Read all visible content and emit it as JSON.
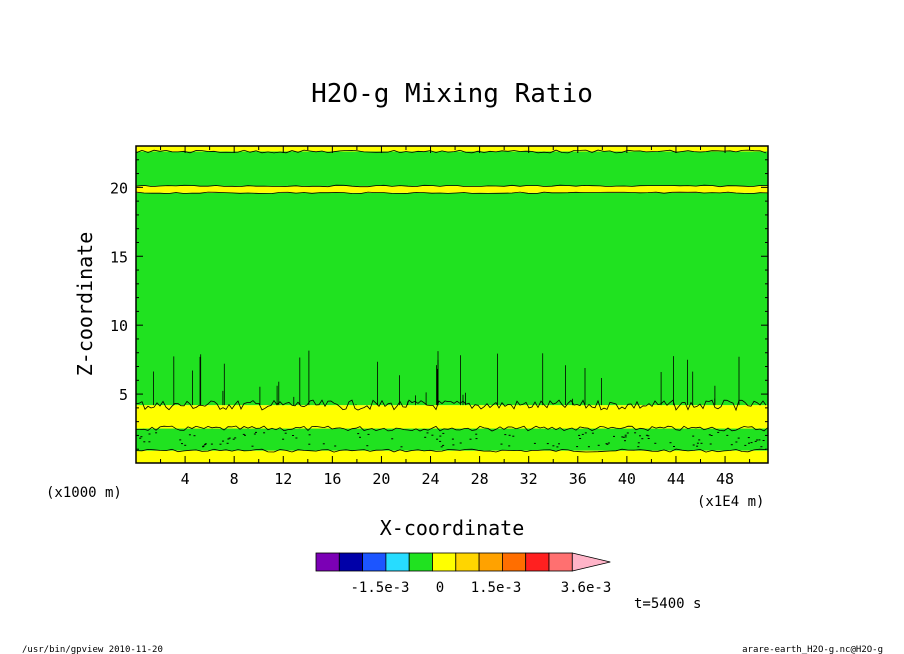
{
  "chart_data": {
    "type": "heatmap",
    "title": "H2O-g Mixing Ratio",
    "xlabel": "X-coordinate",
    "ylabel": "Z-coordinate",
    "x_unit_left": "(x1000 m)",
    "x_unit_right": "(x1E4 m)",
    "xlim": [
      0,
      51.5
    ],
    "ylim": [
      0,
      23
    ],
    "xticks": [
      4,
      8,
      12,
      16,
      20,
      24,
      28,
      32,
      36,
      40,
      44,
      48
    ],
    "yticks": [
      5,
      10,
      15,
      20
    ],
    "colorbar": {
      "colors": [
        "#7b00b5",
        "#0000a8",
        "#1c55ff",
        "#27dcff",
        "#20e220",
        "#ffff00",
        "#ffd500",
        "#ffa200",
        "#ff6e00",
        "#ff2020",
        "#ff7070",
        "#ffb4c8"
      ],
      "tick_labels": [
        "-1.5e-3",
        "0",
        "1.5e-3",
        "3.6e-3"
      ]
    },
    "layers": [
      {
        "z_from": 0.0,
        "z_to": 0.9,
        "level": "yellow"
      },
      {
        "z_from": 0.9,
        "z_to": 2.5,
        "level": "green"
      },
      {
        "z_from": 2.5,
        "z_to": 4.2,
        "level": "yellow"
      },
      {
        "z_from": 4.2,
        "z_to": 19.6,
        "level": "green"
      },
      {
        "z_from": 19.6,
        "z_to": 20.1,
        "level": "yellow"
      },
      {
        "z_from": 20.1,
        "z_to": 22.6,
        "level": "green"
      },
      {
        "z_from": 22.6,
        "z_to": 23.0,
        "level": "yellow"
      }
    ]
  },
  "footer": {
    "time_label": "t=5400 s",
    "left_caption": "/usr/bin/gpview  2010-11-20",
    "right_caption": "arare-earth_H2O-g.nc@H2O-g"
  }
}
